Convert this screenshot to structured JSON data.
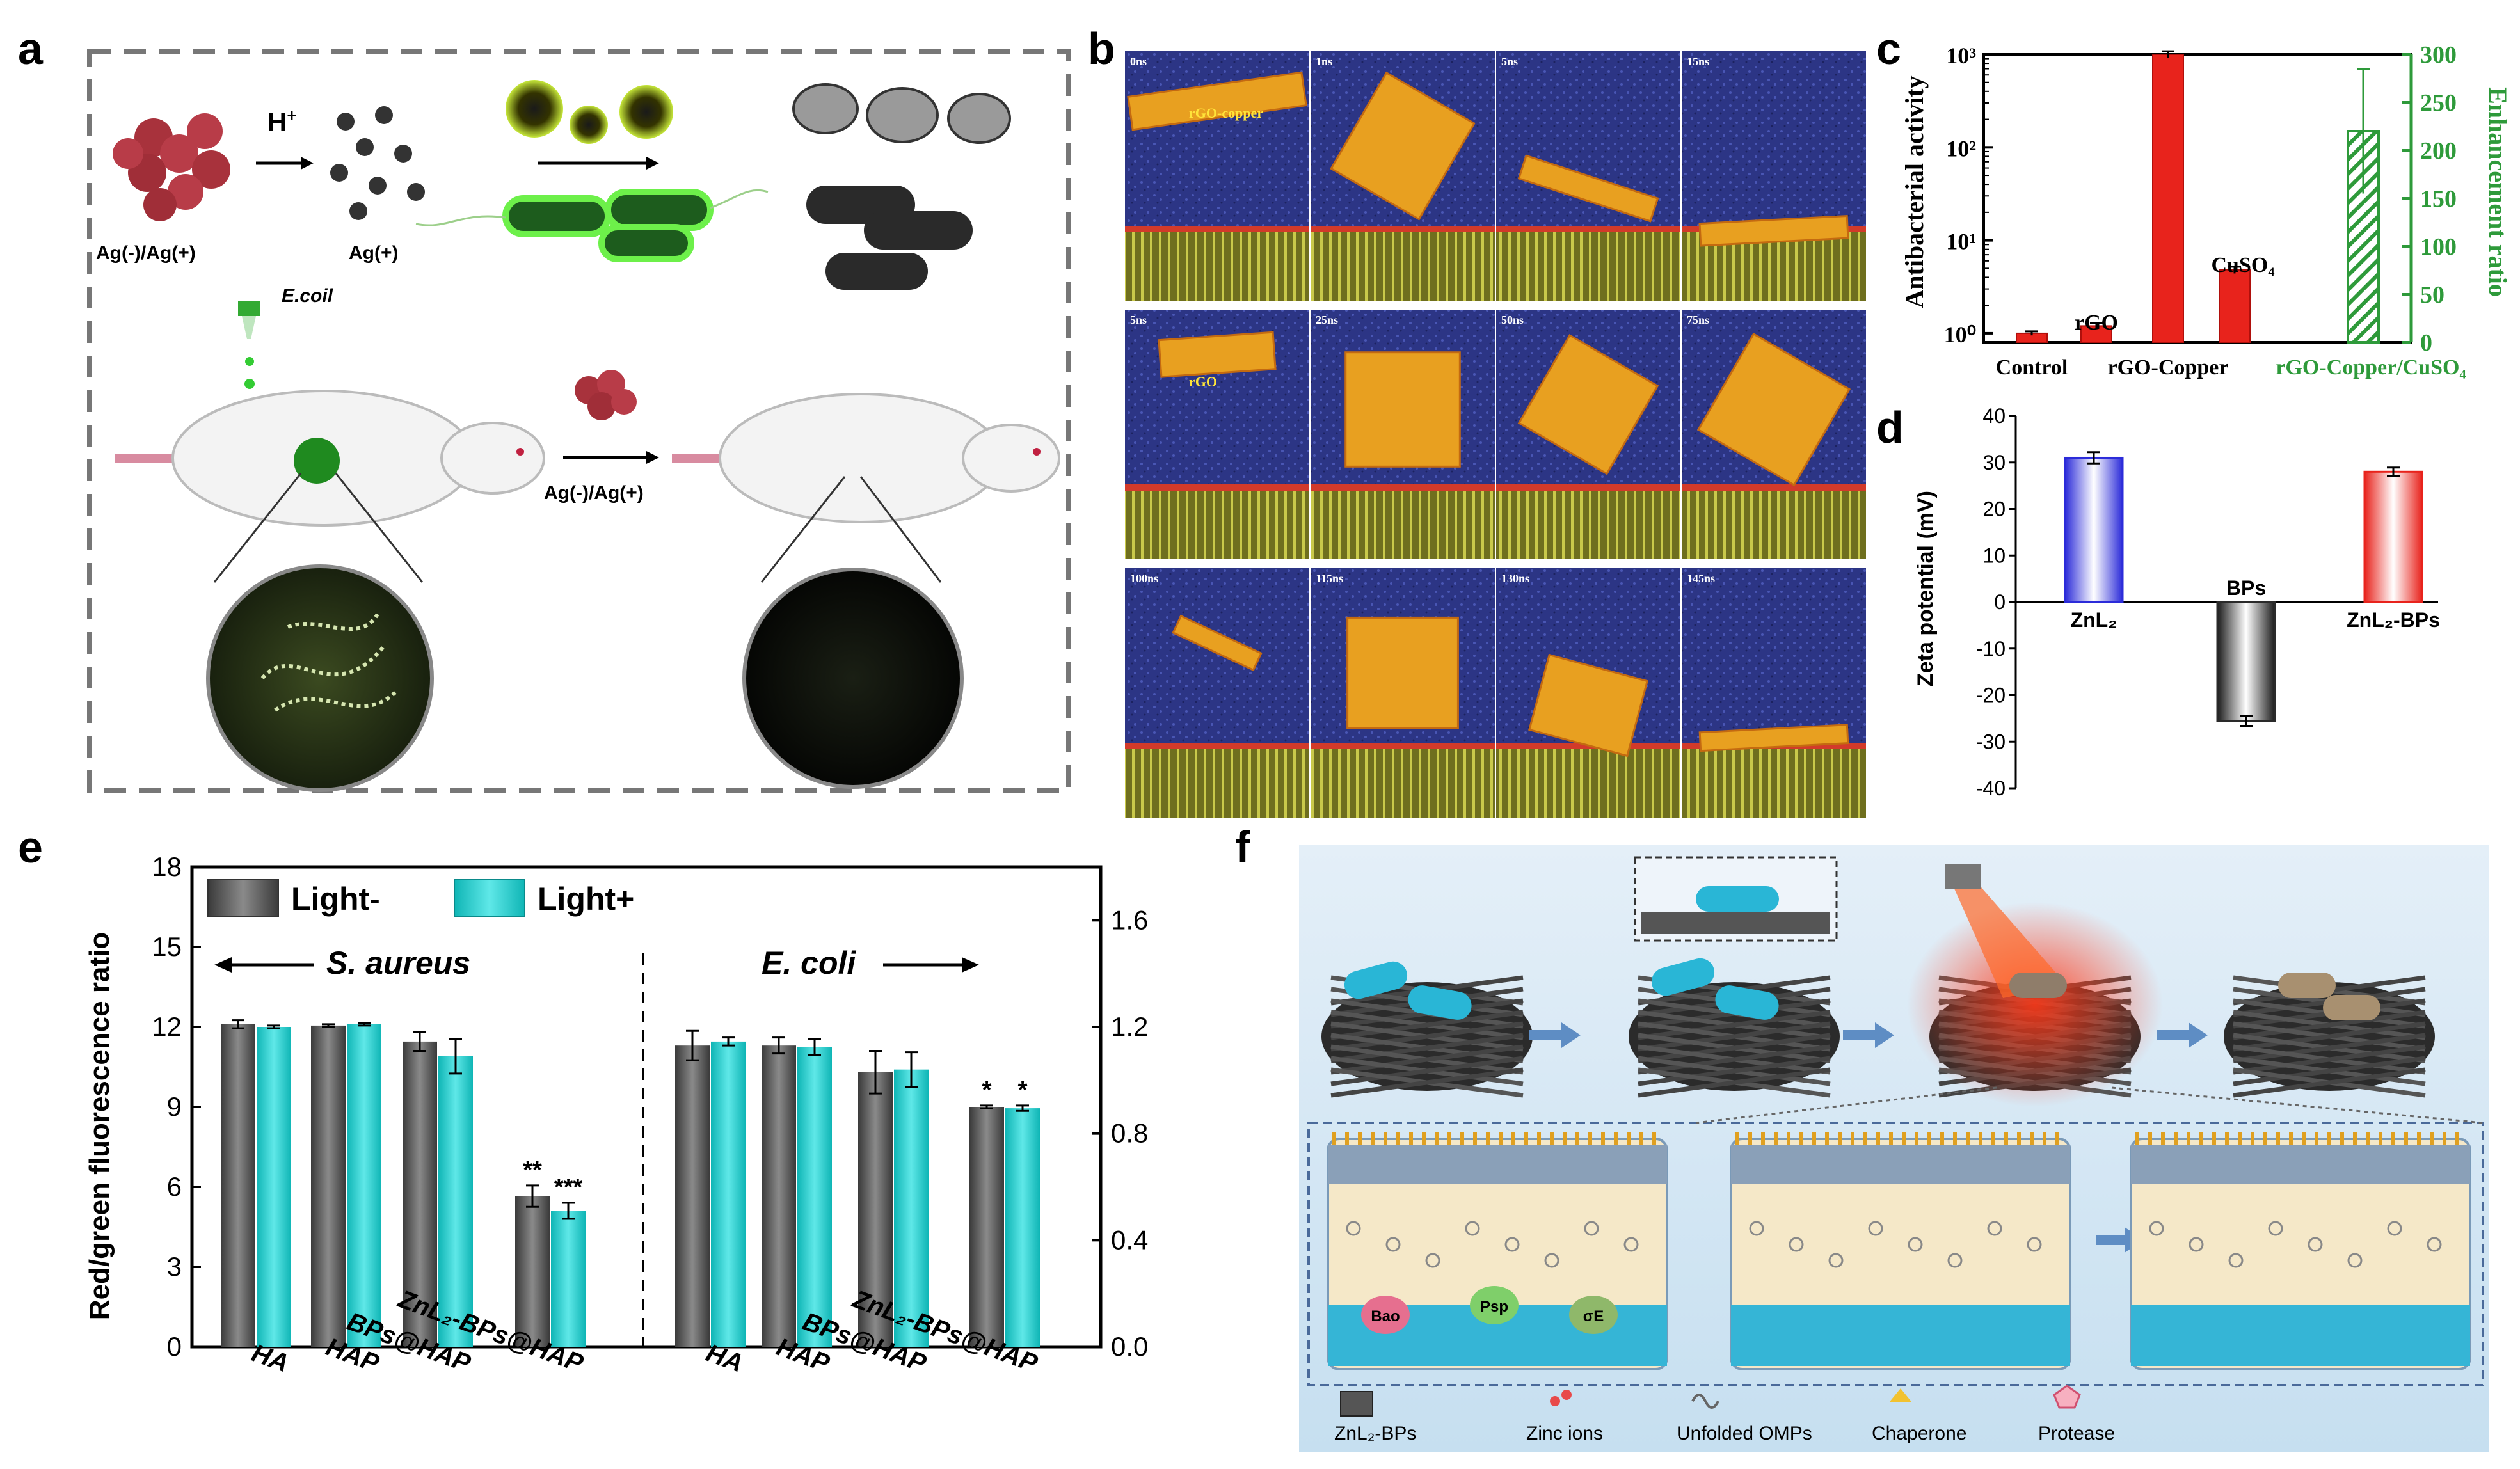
{
  "panel_letters": {
    "a": "a",
    "b": "b",
    "c": "c",
    "d": "d",
    "e": "e",
    "f": "f"
  },
  "panel_a": {
    "label_left": "Ag(-)/Ag(+)",
    "label_right": "Ag(+)",
    "proton": "H",
    "proton_sup": "+",
    "bacteria_label": "E.coil",
    "arrow_label": "Ag(-)/Ag(+)"
  },
  "panel_b": {
    "frames": [
      {
        "time": "0ns",
        "tag": "rGO-copper"
      },
      {
        "time": "1ns",
        "tag": ""
      },
      {
        "time": "5ns",
        "tag": ""
      },
      {
        "time": "15ns",
        "tag": ""
      },
      {
        "time": "5ns",
        "tag": "rGO"
      },
      {
        "time": "25ns",
        "tag": ""
      },
      {
        "time": "50ns",
        "tag": ""
      },
      {
        "time": "75ns",
        "tag": ""
      },
      {
        "time": "100ns",
        "tag": ""
      },
      {
        "time": "115ns",
        "tag": ""
      },
      {
        "time": "130ns",
        "tag": ""
      },
      {
        "time": "145ns",
        "tag": ""
      }
    ]
  },
  "panel_f": {
    "legend": [
      {
        "label": "ZnL₂-BPs",
        "icon": "frame-icon"
      },
      {
        "label": "Zinc ions",
        "icon": "ion-icon"
      },
      {
        "label": "Unfolded OMPs",
        "icon": "squiggle-icon"
      },
      {
        "label": "Chaperone",
        "icon": "chaperone-icon"
      },
      {
        "label": "Protease",
        "icon": "pentagon-icon"
      }
    ],
    "protein_labels": [
      "Bao",
      "Psp",
      "σE"
    ]
  },
  "chart_data": [
    {
      "id": "c",
      "type": "bar",
      "categories": [
        "Control",
        "rGO",
        "rGO-Copper",
        "CuSO₄",
        "rGO-Copper/CuSO₄"
      ],
      "category_labels_shown": [
        "Control",
        "rGO-Copper",
        "rGO-Copper/CuSO₄"
      ],
      "inline_labels": [
        "rGO",
        "CuSO₄"
      ],
      "ylabel": "Antibacterial activity",
      "y2label": "Enhancement ratio",
      "yscale": "log",
      "ylim": [
        0.8,
        1000
      ],
      "y_ticks": [
        "10⁰",
        "10¹",
        "10²",
        "10³"
      ],
      "y2lim": [
        0,
        300
      ],
      "y2_ticks": [
        "0",
        "50",
        "100",
        "150",
        "200",
        "250",
        "300"
      ],
      "series": [
        {
          "name": "",
          "axis": "left",
          "values": [
            1.0,
            1.2,
            1000,
            4.8,
            null
          ],
          "errors": [
            0.05,
            0.08,
            80,
            0.4,
            null
          ],
          "color": "#e8231c"
        },
        {
          "name": "",
          "axis": "right",
          "values": [
            null,
            null,
            null,
            null,
            220
          ],
          "errors": [
            null,
            null,
            null,
            null,
            65
          ],
          "color": "#2e9a3a",
          "pattern": "hatch"
        }
      ]
    },
    {
      "id": "d",
      "type": "bar",
      "categories": [
        "ZnL₂",
        "BPs",
        "ZnL₂-BPs"
      ],
      "ylabel": "Zeta potential (mV)",
      "ylim": [
        -40,
        40
      ],
      "y_ticks": [
        "-40",
        "-30",
        "-20",
        "-10",
        "0",
        "10",
        "20",
        "30",
        "40"
      ],
      "values": [
        31,
        -25.5,
        28
      ],
      "errors": [
        1.2,
        1.1,
        0.9
      ],
      "colors": [
        "#2b2bd9",
        "#2a2a2a",
        "#e8231c"
      ]
    },
    {
      "id": "e",
      "type": "bar",
      "legend": [
        "Light-",
        "Light+"
      ],
      "legend_position": "top-left",
      "ylabel": "Red/green fluorescence ratio",
      "ylim": [
        0,
        18
      ],
      "y_ticks": [
        "0",
        "3",
        "6",
        "9",
        "12",
        "15",
        "18"
      ],
      "y2lim": [
        0,
        1.8
      ],
      "y2_ticks": [
        "0.0",
        "0.4",
        "0.8",
        "1.2",
        "1.6"
      ],
      "groups": [
        {
          "name": "S. aureus",
          "axis": "left",
          "categories": [
            "HA",
            "HAP",
            "BPs@HAP",
            "ZnL₂-BPs@HAP"
          ],
          "series": [
            {
              "name": "Light-",
              "values": [
                12.1,
                12.05,
                11.45,
                5.65
              ],
              "errors": [
                0.15,
                0.05,
                0.35,
                0.4
              ],
              "sig": [
                "",
                "",
                "",
                "**"
              ]
            },
            {
              "name": "Light+",
              "values": [
                12.0,
                12.1,
                10.9,
                5.1
              ],
              "errors": [
                0.05,
                0.05,
                0.65,
                0.3
              ],
              "sig": [
                "",
                "",
                "",
                "***"
              ]
            }
          ]
        },
        {
          "name": "E. coli",
          "axis": "right",
          "categories": [
            "HA",
            "HAP",
            "BPs@HAP",
            "ZnL₂-BPs@HAP"
          ],
          "series": [
            {
              "name": "Light-",
              "values": [
                1.13,
                1.13,
                1.03,
                0.9
              ],
              "errors": [
                0.055,
                0.03,
                0.08,
                0.005
              ],
              "sig": [
                "",
                "",
                "",
                "*"
              ]
            },
            {
              "name": "Light+",
              "values": [
                1.145,
                1.125,
                1.04,
                0.895
              ],
              "errors": [
                0.015,
                0.03,
                0.065,
                0.01
              ],
              "sig": [
                "",
                "",
                "",
                "*"
              ]
            }
          ]
        }
      ],
      "colors": {
        "Light-": "#5a5a5a",
        "Light+": "#19c6c6"
      }
    }
  ]
}
